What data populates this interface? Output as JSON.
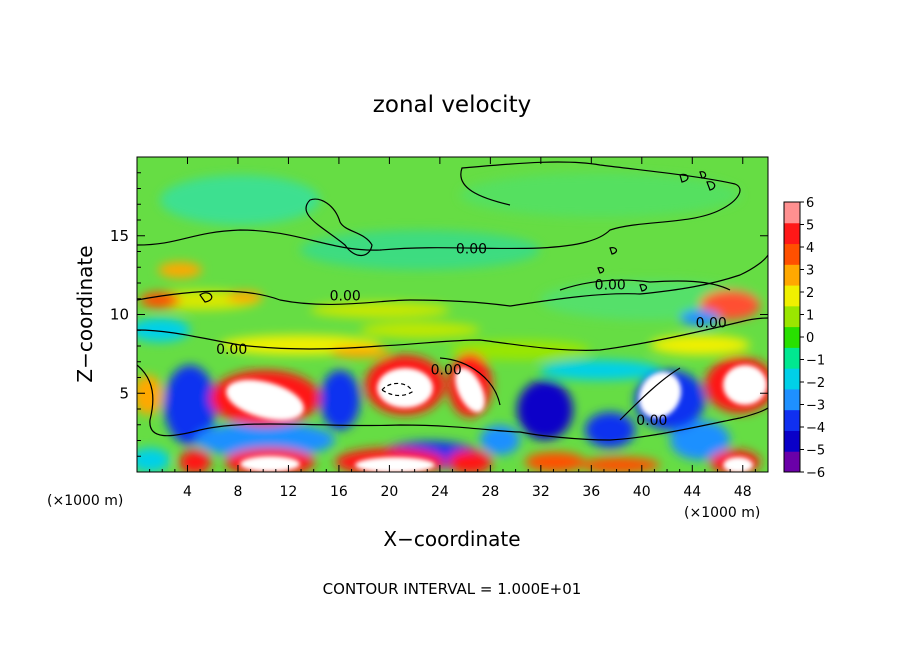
{
  "chart_data": {
    "type": "heatmap",
    "title": "zonal velocity",
    "xlabel": "X−coordinate",
    "ylabel": "Z−coordinate",
    "x_unit_left": "(×1000 m)",
    "x_unit_right": "(×1000 m)",
    "footer": "CONTOUR INTERVAL = 1.000E+01",
    "xlim": [
      0,
      50
    ],
    "ylim": [
      0,
      20
    ],
    "x_ticks": [
      4,
      8,
      12,
      16,
      20,
      24,
      28,
      32,
      36,
      40,
      44,
      48
    ],
    "y_ticks": [
      5,
      10,
      15
    ],
    "colorbar": {
      "min": -6,
      "max": 6,
      "ticks": [
        6,
        5,
        4,
        3,
        2,
        1,
        0,
        -1,
        -2,
        -3,
        -4,
        -5,
        -6
      ],
      "colors": [
        "#6a00a8",
        "#0a00c8",
        "#1030f0",
        "#1e90ff",
        "#00d0e8",
        "#00e890",
        "#28e000",
        "#9ae600",
        "#f0f000",
        "#ffa800",
        "#ff5000",
        "#ff1818",
        "#ff9090"
      ]
    },
    "contour_labels": [
      {
        "text": "0.00",
        "x": 26.5,
        "y": 14.2
      },
      {
        "text": "0.00",
        "x": 16.5,
        "y": 11.2
      },
      {
        "text": "0.00",
        "x": 7.5,
        "y": 7.8
      },
      {
        "text": "0.00",
        "x": 24.5,
        "y": 6.5
      },
      {
        "text": "0.00",
        "x": 37.5,
        "y": 11.9
      },
      {
        "text": "0.00",
        "x": 40.8,
        "y": 3.3
      },
      {
        "text": "0.00",
        "x": 45.5,
        "y": 9.5
      }
    ]
  }
}
